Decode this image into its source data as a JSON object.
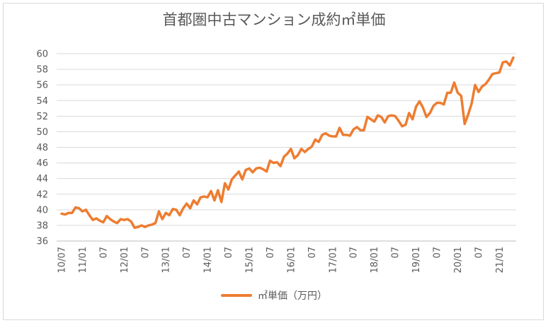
{
  "chart_data": {
    "type": "line",
    "title": "首都圏中古マンション成約㎡単価",
    "ylim": [
      36,
      60
    ],
    "yticks": [
      36,
      38,
      40,
      42,
      44,
      46,
      48,
      50,
      52,
      54,
      56,
      58,
      60
    ],
    "xtick_labels": [
      "10/07",
      "11/01",
      "07",
      "12/01",
      "07",
      "13/01",
      "07",
      "14/01",
      "07",
      "15/01",
      "07",
      "16/01",
      "07",
      "17/01",
      "07",
      "18/01",
      "07",
      "19/01",
      "07",
      "20/01",
      "07",
      "21/01"
    ],
    "grid": true,
    "legend_position": "bottom",
    "series": [
      {
        "name": "㎡単価（万円）",
        "color": "#ED7D31",
        "x": [
          "10/07",
          "10/08",
          "10/09",
          "10/10",
          "10/11",
          "10/12",
          "11/01",
          "11/02",
          "11/03",
          "11/04",
          "11/05",
          "11/06",
          "11/07",
          "11/08",
          "11/09",
          "11/10",
          "11/11",
          "11/12",
          "12/01",
          "12/02",
          "12/03",
          "12/04",
          "12/05",
          "12/06",
          "12/07",
          "12/08",
          "12/09",
          "12/10",
          "12/11",
          "12/12",
          "13/01",
          "13/02",
          "13/03",
          "13/04",
          "13/05",
          "13/06",
          "13/07",
          "13/08",
          "13/09",
          "13/10",
          "13/11",
          "13/12",
          "14/01",
          "14/02",
          "14/03",
          "14/04",
          "14/05",
          "14/06",
          "14/07",
          "14/08",
          "14/09",
          "14/10",
          "14/11",
          "14/12",
          "15/01",
          "15/02",
          "15/03",
          "15/04",
          "15/05",
          "15/06",
          "15/07",
          "15/08",
          "15/09",
          "15/10",
          "15/11",
          "15/12",
          "16/01",
          "16/02",
          "16/03",
          "16/04",
          "16/05",
          "16/06",
          "16/07",
          "16/08",
          "16/09",
          "16/10",
          "16/11",
          "16/12",
          "17/01",
          "17/02",
          "17/03",
          "17/04",
          "17/05",
          "17/06",
          "17/07",
          "17/08",
          "17/09",
          "17/10",
          "17/11",
          "17/12",
          "18/01",
          "18/02",
          "18/03",
          "18/04",
          "18/05",
          "18/06",
          "18/07",
          "18/08",
          "18/09",
          "18/10",
          "18/11",
          "18/12",
          "19/01",
          "19/02",
          "19/03",
          "19/04",
          "19/05",
          "19/06",
          "19/07",
          "19/08",
          "19/09",
          "19/10",
          "19/11",
          "19/12",
          "20/01",
          "20/02",
          "20/03",
          "20/04",
          "20/05",
          "20/06",
          "20/07",
          "20/08",
          "20/09",
          "20/10",
          "20/11",
          "20/12",
          "21/01",
          "21/02",
          "21/03",
          "21/04",
          "21/05"
        ],
        "values": [
          39.5,
          39.4,
          39.6,
          39.6,
          40.3,
          40.2,
          39.8,
          40.0,
          39.3,
          38.7,
          38.9,
          38.6,
          38.4,
          39.2,
          38.8,
          38.5,
          38.3,
          38.8,
          38.7,
          38.8,
          38.5,
          37.7,
          37.8,
          38.0,
          37.8,
          38.0,
          38.1,
          38.3,
          39.8,
          38.8,
          39.6,
          39.3,
          40.1,
          40.0,
          39.3,
          40.2,
          40.8,
          40.2,
          41.2,
          40.7,
          41.6,
          41.7,
          41.6,
          42.4,
          41.2,
          42.5,
          41.0,
          43.4,
          42.6,
          43.9,
          44.4,
          44.9,
          43.9,
          45.1,
          45.3,
          44.8,
          45.3,
          45.4,
          45.2,
          44.9,
          46.3,
          46.0,
          46.1,
          45.6,
          46.8,
          47.2,
          47.8,
          46.6,
          47.0,
          47.8,
          47.4,
          47.8,
          48.1,
          49.0,
          48.7,
          49.6,
          49.8,
          49.5,
          49.4,
          49.4,
          50.5,
          49.6,
          49.6,
          49.5,
          50.3,
          50.6,
          50.2,
          50.2,
          51.9,
          51.6,
          51.3,
          52.1,
          51.9,
          51.2,
          52.0,
          52.1,
          52.0,
          51.4,
          50.7,
          50.9,
          52.4,
          51.6,
          53.2,
          53.9,
          53.1,
          51.9,
          52.4,
          53.3,
          53.7,
          53.7,
          53.5,
          55.0,
          55.0,
          56.3,
          55.0,
          54.6,
          51.0,
          52.2,
          53.6,
          56.0,
          55.1,
          55.8,
          56.1,
          56.7,
          57.4,
          57.5,
          57.6,
          58.9,
          59.0,
          58.5,
          59.5
        ]
      }
    ]
  }
}
